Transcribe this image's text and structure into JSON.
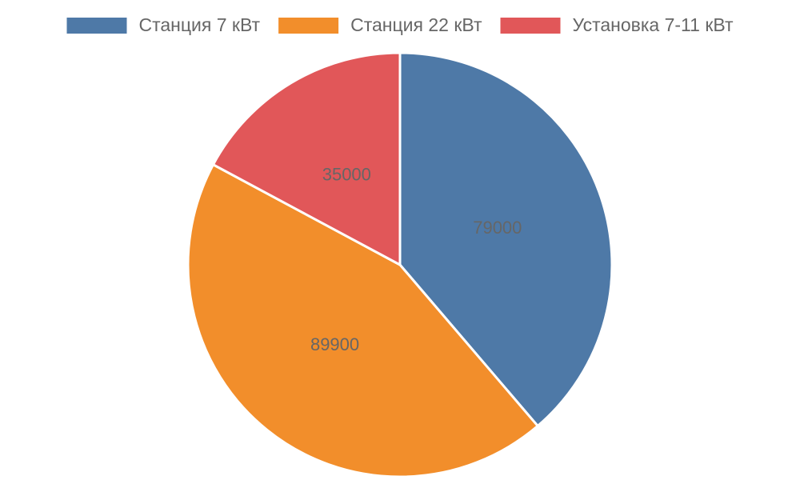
{
  "chart_data": {
    "type": "pie",
    "categories": [
      "Станция 7 кВт",
      "Станция 22 кВт",
      "Установка 7-11 кВт"
    ],
    "values": [
      79000,
      89900,
      35000
    ],
    "colors": [
      "#4e79a7",
      "#f28e2b",
      "#e15759"
    ],
    "legend": "top"
  }
}
